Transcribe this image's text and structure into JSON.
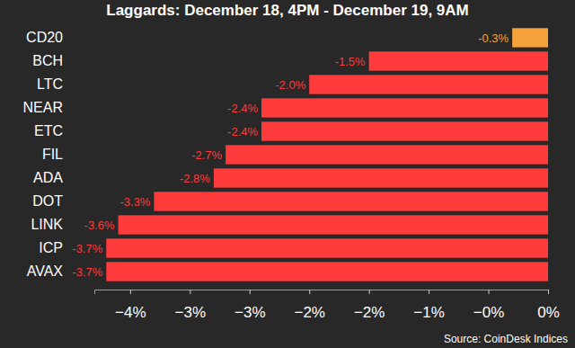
{
  "chart_data": {
    "type": "bar",
    "orientation": "horizontal",
    "title": "Laggards: December 18, 4PM - December 19, 9AM",
    "annotation": "Source: CoinDesk Indices",
    "categories": [
      "CD20",
      "BCH",
      "LTC",
      "NEAR",
      "ETC",
      "FIL",
      "ADA",
      "DOT",
      "LINK",
      "ICP",
      "AVAX"
    ],
    "values": [
      -0.3,
      -1.5,
      -2.0,
      -2.4,
      -2.4,
      -2.7,
      -2.8,
      -3.3,
      -3.6,
      -3.7,
      -3.7
    ],
    "value_labels": [
      "-0.3%",
      "-1.5%",
      "-2.0%",
      "-2.4%",
      "-2.4%",
      "-2.7%",
      "-2.8%",
      "-3.3%",
      "-3.6%",
      "-3.7%",
      "-3.7%"
    ],
    "colors": [
      "#f6a23a",
      "#ff3b3b",
      "#ff3b3b",
      "#ff3b3b",
      "#ff3b3b",
      "#ff3b3b",
      "#ff3b3b",
      "#ff3b3b",
      "#ff3b3b",
      "#ff3b3b",
      "#ff3b3b"
    ],
    "data_labels": true,
    "grid": false,
    "xlim": [
      -3.8,
      0
    ],
    "xticks": [
      {
        "value": -3.5,
        "label": "−4%"
      },
      {
        "value": -3.0,
        "label": "−3%"
      },
      {
        "value": -2.5,
        "label": "−3%"
      },
      {
        "value": -2.0,
        "label": "−2%"
      },
      {
        "value": -1.5,
        "label": "−2%"
      },
      {
        "value": -1.0,
        "label": "−1%"
      },
      {
        "value": -0.5,
        "label": "−0%"
      },
      {
        "value": 0,
        "label": "0%"
      }
    ]
  }
}
